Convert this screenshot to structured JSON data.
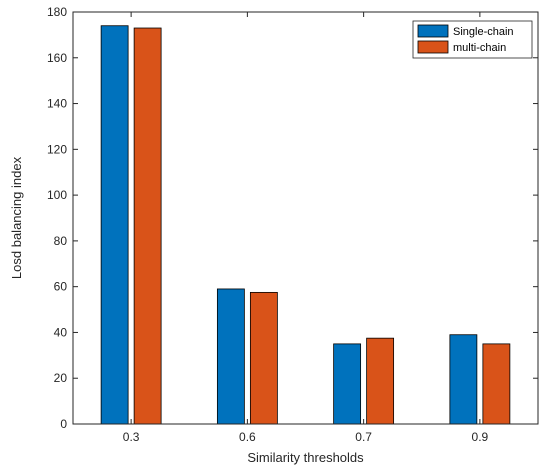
{
  "chart_data": {
    "type": "bar",
    "title": "",
    "xlabel": "Similarity thresholds",
    "ylabel": "Losd balancing index",
    "categories": [
      "0.3",
      "0.6",
      "0.7",
      "0.9"
    ],
    "series": [
      {
        "name": "Single-chain",
        "color": "#0072BD",
        "values": [
          174,
          59,
          35,
          39
        ]
      },
      {
        "name": "multi-chain",
        "color": "#D95319",
        "values": [
          173,
          57.5,
          37.5,
          35
        ]
      }
    ],
    "ylim": [
      0,
      180
    ],
    "yticks": [
      0,
      20,
      40,
      60,
      80,
      100,
      120,
      140,
      160,
      180
    ],
    "grid": false,
    "legend_position": "top-right"
  }
}
